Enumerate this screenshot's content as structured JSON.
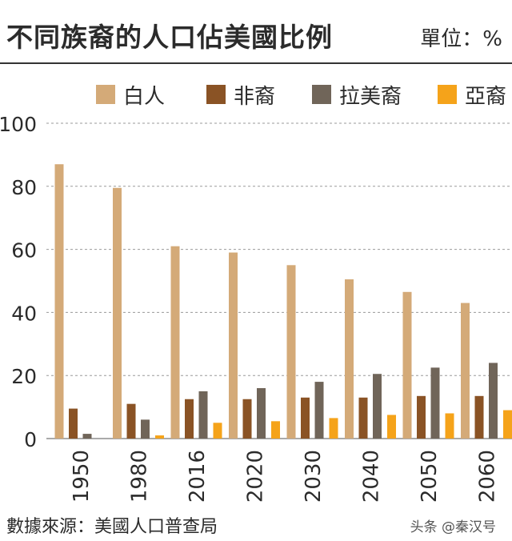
{
  "header": {
    "title": "不同族裔的人口佔美國比例",
    "unit": "單位：%"
  },
  "footer": {
    "source": "數據來源：美國人口普查局",
    "watermark": "头条 @秦汉号"
  },
  "chart_data": {
    "type": "bar",
    "title": "不同族裔的人口佔美國比例",
    "xlabel": "",
    "ylabel": "",
    "unit": "%",
    "categories": [
      "1950",
      "1980",
      "2016",
      "2020",
      "2030",
      "2040",
      "2050",
      "2060"
    ],
    "ylim": [
      0,
      100
    ],
    "yticks": [
      0,
      20,
      40,
      60,
      80,
      100
    ],
    "grid": true,
    "legend_position": "top",
    "series": [
      {
        "name": "白人",
        "color": "#d4aa78",
        "values": [
          87,
          79.5,
          61,
          59,
          55,
          50.5,
          46.5,
          43
        ]
      },
      {
        "name": "非裔",
        "color": "#8a5325",
        "values": [
          9.5,
          11,
          12.5,
          12.5,
          13,
          13,
          13.5,
          13.5
        ]
      },
      {
        "name": "拉美裔",
        "color": "#706559",
        "values": [
          1.5,
          6,
          15,
          16,
          18,
          20.5,
          22.5,
          24
        ]
      },
      {
        "name": "亞裔",
        "color": "#f5a31a",
        "values": [
          0,
          1,
          5,
          5.5,
          6.5,
          7.5,
          8,
          9
        ]
      }
    ]
  }
}
